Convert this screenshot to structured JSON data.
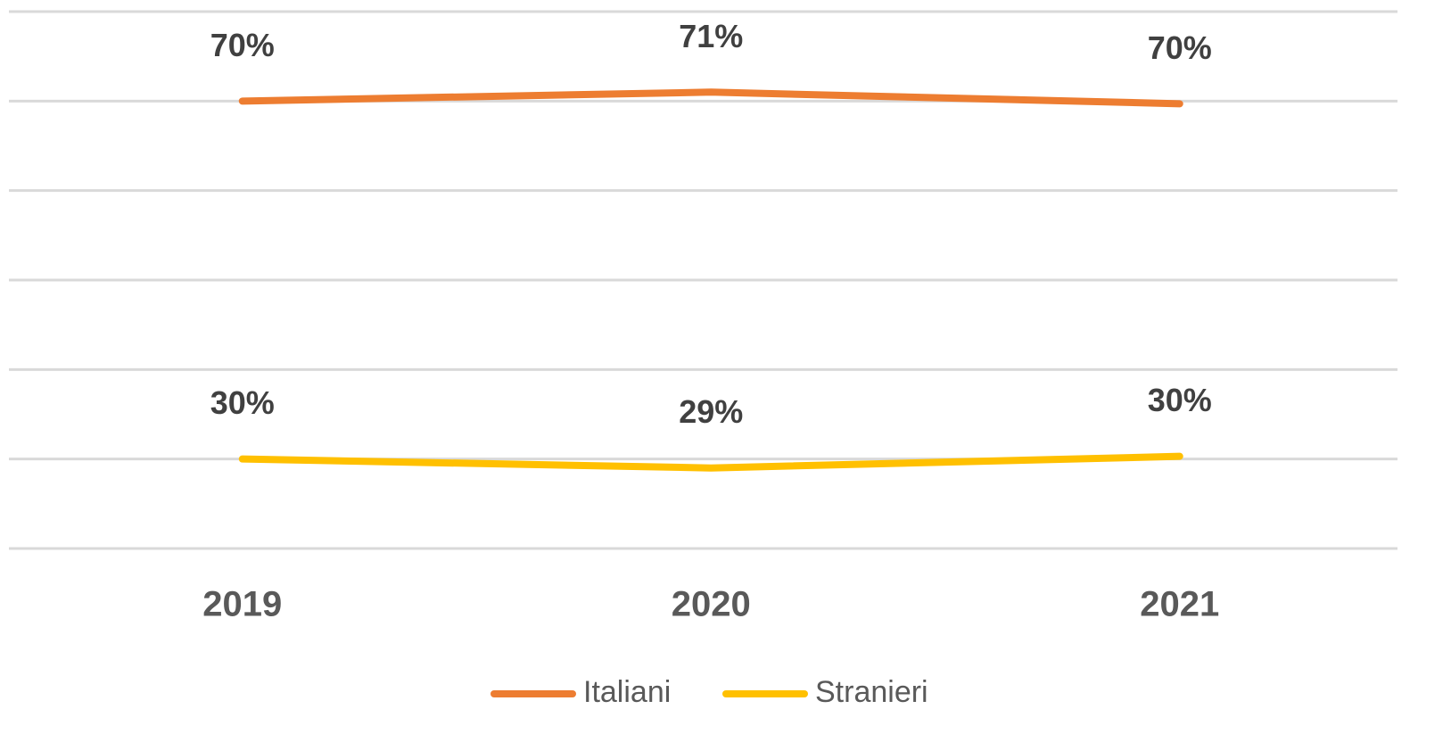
{
  "chart_data": {
    "type": "line",
    "categories": [
      "2019",
      "2020",
      "2021"
    ],
    "series": [
      {
        "name": "Italiani",
        "color": "#ED7D31",
        "values": [
          70,
          71,
          69.7
        ],
        "value_labels": [
          "70%",
          "71%",
          "70%"
        ]
      },
      {
        "name": "Stranieri",
        "color": "#FFC000",
        "values": [
          30,
          29,
          30.3
        ],
        "value_labels": [
          "30%",
          "29%",
          "30%"
        ]
      }
    ],
    "ylim": [
      20,
      80
    ],
    "yticks": [
      20,
      30,
      40,
      50,
      60,
      70,
      80
    ],
    "grid": true,
    "legend": "bottom"
  }
}
